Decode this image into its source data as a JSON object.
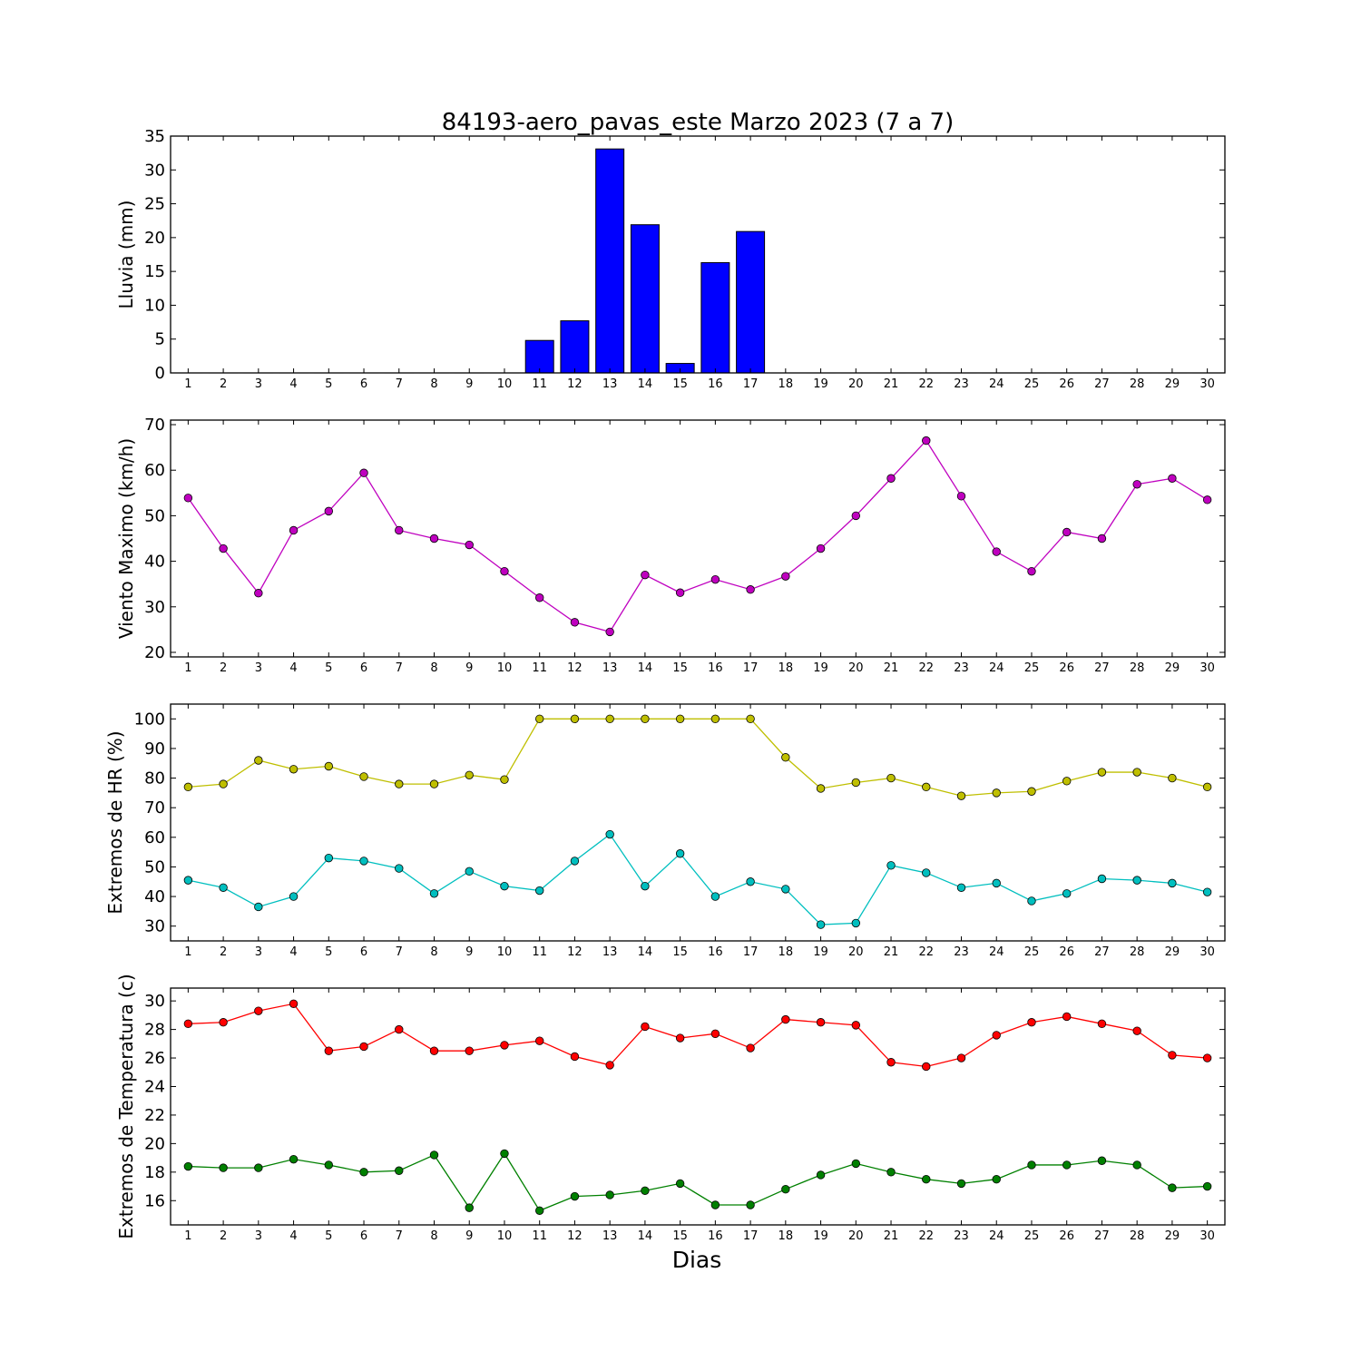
{
  "title": "84193-aero_pavas_este Marzo 2023  (7 a 7)",
  "xlabel": "Dias",
  "chart_data": [
    {
      "type": "bar",
      "ylabel": "Lluvia (mm)",
      "ylim": [
        0,
        35
      ],
      "yticks": [
        0,
        5,
        10,
        15,
        20,
        25,
        30,
        35
      ],
      "x": [
        1,
        2,
        3,
        4,
        5,
        6,
        7,
        8,
        9,
        10,
        11,
        12,
        13,
        14,
        15,
        16,
        17,
        18,
        19,
        20,
        21,
        22,
        23,
        24,
        25,
        26,
        27,
        28,
        29,
        30
      ],
      "series": [
        {
          "color": "#0000ff",
          "values": [
            0,
            0,
            0,
            0,
            0,
            0,
            0,
            0,
            0,
            0,
            4.8,
            7.7,
            33.1,
            21.9,
            1.4,
            16.3,
            20.9,
            0,
            0,
            0,
            0,
            0,
            0,
            0,
            0,
            0,
            0,
            0,
            0,
            0
          ]
        }
      ]
    },
    {
      "type": "line",
      "ylabel": "Viento Maximo (km/h)",
      "ylim": [
        19,
        71
      ],
      "yticks": [
        20,
        30,
        40,
        50,
        60,
        70
      ],
      "x": [
        1,
        2,
        3,
        4,
        5,
        6,
        7,
        8,
        9,
        10,
        11,
        12,
        13,
        14,
        15,
        16,
        17,
        18,
        19,
        20,
        21,
        22,
        23,
        24,
        25,
        26,
        27,
        28,
        29,
        30
      ],
      "series": [
        {
          "color": "#bf00bf",
          "values": [
            53.9,
            42.8,
            33.0,
            46.8,
            51.0,
            59.4,
            46.8,
            45.0,
            43.6,
            37.8,
            32.0,
            26.6,
            24.5,
            37.0,
            33.1,
            36.0,
            33.8,
            36.7,
            42.8,
            50.0,
            58.2,
            66.5,
            54.3,
            42.1,
            37.8,
            46.4,
            45.0,
            56.9,
            58.2,
            53.5
          ]
        }
      ]
    },
    {
      "type": "line",
      "ylabel": "Extremos de HR (%)",
      "ylim": [
        25,
        105
      ],
      "yticks": [
        30,
        40,
        50,
        60,
        70,
        80,
        90,
        100
      ],
      "x": [
        1,
        2,
        3,
        4,
        5,
        6,
        7,
        8,
        9,
        10,
        11,
        12,
        13,
        14,
        15,
        16,
        17,
        18,
        19,
        20,
        21,
        22,
        23,
        24,
        25,
        26,
        27,
        28,
        29,
        30
      ],
      "series": [
        {
          "color": "#bfbf00",
          "values": [
            77,
            78,
            86,
            83,
            84,
            80.5,
            78,
            78,
            81,
            79.5,
            100,
            100,
            100,
            100,
            100,
            100,
            100,
            87,
            76.5,
            78.5,
            80,
            77,
            74,
            75,
            75.5,
            79,
            82,
            82,
            80,
            77
          ]
        },
        {
          "color": "#00bfbf",
          "values": [
            45.5,
            43,
            36.5,
            40,
            53,
            52,
            49.5,
            41,
            48.5,
            43.5,
            42,
            52,
            61,
            43.5,
            54.5,
            40,
            45,
            42.5,
            30.5,
            31,
            50.5,
            48,
            43,
            44.5,
            38.5,
            41,
            46,
            45.5,
            44.5,
            41.5
          ]
        }
      ]
    },
    {
      "type": "line",
      "ylabel": "Extremos de Temperatura (c)",
      "ylim": [
        14.3,
        30.9
      ],
      "yticks": [
        16,
        18,
        20,
        22,
        24,
        26,
        28,
        30
      ],
      "x": [
        1,
        2,
        3,
        4,
        5,
        6,
        7,
        8,
        9,
        10,
        11,
        12,
        13,
        14,
        15,
        16,
        17,
        18,
        19,
        20,
        21,
        22,
        23,
        24,
        25,
        26,
        27,
        28,
        29,
        30
      ],
      "series": [
        {
          "color": "#ff0000",
          "values": [
            28.4,
            28.5,
            29.3,
            29.8,
            26.5,
            26.8,
            28.0,
            26.5,
            26.5,
            26.9,
            27.2,
            26.1,
            25.5,
            28.2,
            27.4,
            27.7,
            26.7,
            28.7,
            28.5,
            28.3,
            25.7,
            25.4,
            26.0,
            27.6,
            28.5,
            28.9,
            28.4,
            27.9,
            26.2,
            26.0
          ]
        },
        {
          "color": "#008000",
          "values": [
            18.4,
            18.3,
            18.3,
            18.9,
            18.5,
            18.0,
            18.1,
            19.2,
            15.5,
            19.3,
            15.3,
            16.3,
            16.4,
            16.7,
            17.2,
            15.7,
            15.7,
            16.8,
            17.8,
            18.6,
            18.0,
            17.5,
            17.2,
            17.5,
            18.5,
            18.5,
            18.8,
            18.5,
            16.9,
            17.0
          ]
        }
      ]
    }
  ]
}
